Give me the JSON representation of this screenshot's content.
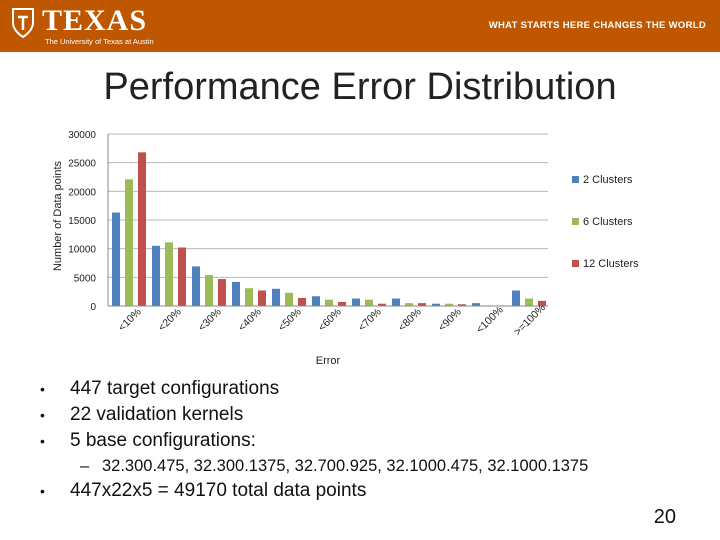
{
  "header": {
    "logo_text": "TEXAS",
    "logo_subtext": "The University of Texas at Austin",
    "tagline": "WHAT STARTS HERE CHANGES THE WORLD",
    "brand_color": "#bf5700"
  },
  "slide": {
    "title": "Performance Error Distribution",
    "page_number": "20"
  },
  "bullets": [
    {
      "text": "447 target configurations"
    },
    {
      "text": "22 validation kernels"
    },
    {
      "text": "5 base configurations:"
    },
    {
      "text": "32.300.475, 32.300.1375, 32.700.925, 32.1000.475, 32.1000.1375",
      "sub": true
    },
    {
      "text": "447x22x5 = 49170 total data points"
    }
  ],
  "chart_data": {
    "type": "bar",
    "title": "",
    "xlabel": "Error",
    "ylabel": "Number of Data points",
    "ylim": [
      0,
      30000
    ],
    "yticks": [
      0,
      5000,
      10000,
      15000,
      20000,
      25000,
      30000
    ],
    "grid": true,
    "legend_position": "right",
    "categories": [
      "<10%",
      "<20%",
      "<30%",
      "<40%",
      "<50%",
      "<60%",
      "<70%",
      "<80%",
      "<90%",
      "<100%",
      ">=100%"
    ],
    "series": [
      {
        "name": "2 Clusters",
        "color": "#4f81bd",
        "values": [
          16300,
          10500,
          6900,
          4200,
          3000,
          1700,
          1300,
          1300,
          400,
          500,
          2700
        ]
      },
      {
        "name": "6 Clusters",
        "color": "#9bbb59",
        "values": [
          22100,
          11100,
          5400,
          3100,
          2300,
          1100,
          1100,
          500,
          400,
          100,
          1300
        ]
      },
      {
        "name": "12 Clusters",
        "color": "#c0504d",
        "values": [
          26800,
          10200,
          4700,
          2700,
          1400,
          700,
          400,
          500,
          300,
          100,
          900
        ]
      }
    ]
  }
}
